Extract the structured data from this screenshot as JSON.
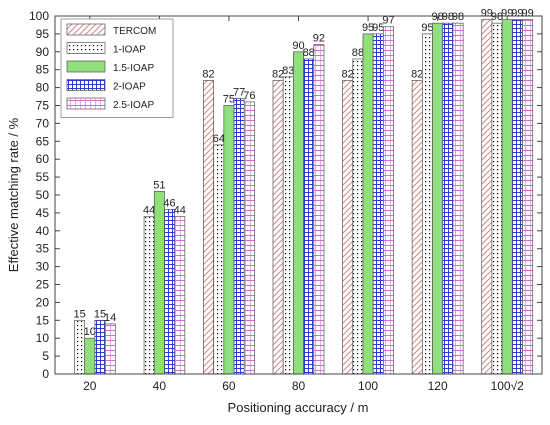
{
  "chart_data": {
    "type": "bar",
    "title": "",
    "xlabel": "Positioning accuracy / m",
    "ylabel": "Effective matching rate / %",
    "ylim": [
      0,
      100
    ],
    "yticks": [
      0,
      5,
      10,
      15,
      20,
      25,
      30,
      35,
      40,
      45,
      50,
      55,
      60,
      65,
      70,
      75,
      80,
      85,
      90,
      95,
      100
    ],
    "categories": [
      "20",
      "40",
      "60",
      "80",
      "100",
      "120",
      "100√2"
    ],
    "legend_position": "top-left",
    "grid": false,
    "series": [
      {
        "name": "TERCOM",
        "color": "#c0504d",
        "pattern": "diagonal-hatch",
        "values": [
          null,
          null,
          82,
          82,
          82,
          82,
          99
        ]
      },
      {
        "name": "1-IOAP",
        "color": "#000000",
        "pattern": "dots",
        "values": [
          15,
          44,
          64,
          83,
          88,
          95,
          98
        ]
      },
      {
        "name": "1.5-IOAP",
        "color": "#80d060",
        "pattern": "solid-green",
        "values": [
          10,
          51,
          75,
          90,
          95,
          98,
          99
        ]
      },
      {
        "name": "2-IOAP",
        "color": "#1f3fb0",
        "pattern": "blue-grid",
        "values": [
          15,
          46,
          77,
          88,
          95,
          98,
          99
        ]
      },
      {
        "name": "2.5-IOAP",
        "color": "#d070d0",
        "pattern": "pink-grid",
        "values": [
          14,
          44,
          76,
          92,
          97,
          98,
          99
        ]
      }
    ]
  }
}
